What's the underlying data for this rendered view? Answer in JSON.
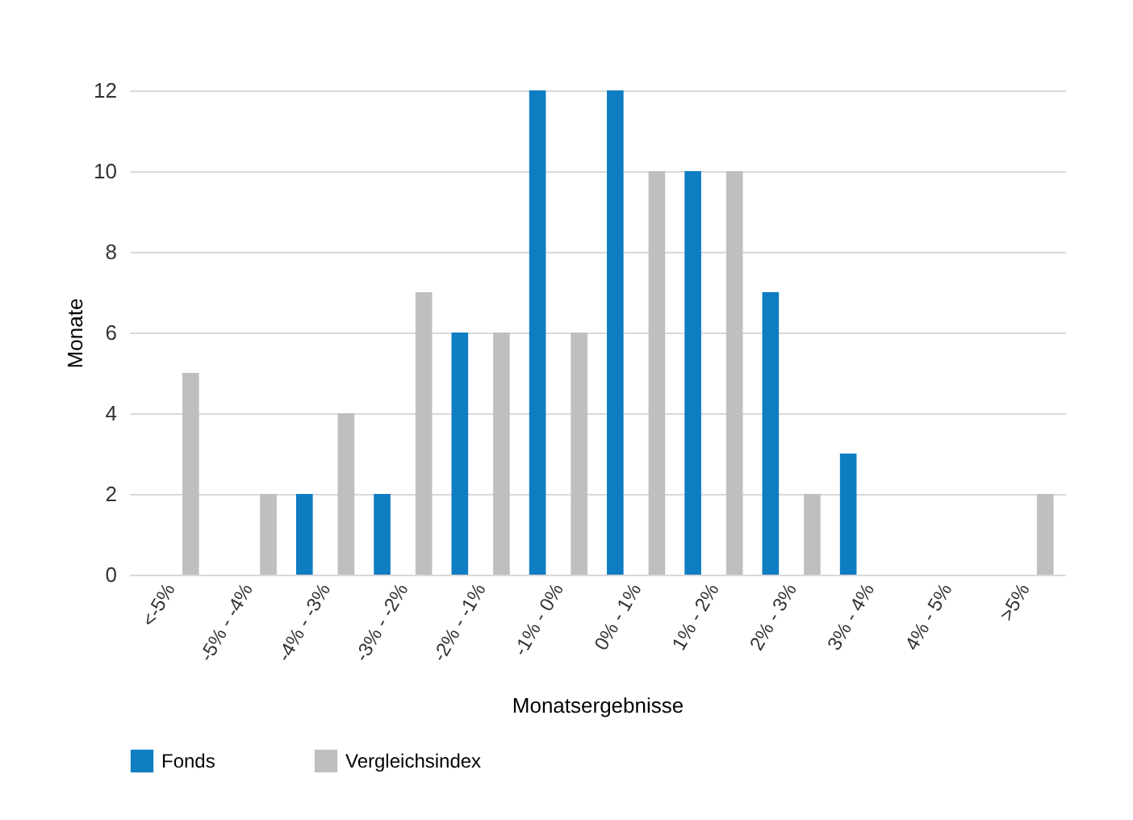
{
  "chart_data": {
    "type": "bar",
    "xlabel": "Monatsergebnisse",
    "ylabel": "Monate",
    "categories": [
      "<-5%",
      "-5% - -4%",
      "-4% - -3%",
      "-3% - -2%",
      "-2% - -1%",
      "-1% - 0%",
      "0% - 1%",
      "1% - 2%",
      "2% - 3%",
      "3% - 4%",
      "4% - 5%",
      ">5%"
    ],
    "series": [
      {
        "name": "Fonds",
        "color": "#0e7dc2",
        "values": [
          0,
          0,
          2,
          2,
          6,
          12,
          12,
          10,
          7,
          3,
          0,
          0
        ]
      },
      {
        "name": "Vergleichsindex",
        "color": "#bfbfbf",
        "values": [
          5,
          2,
          4,
          7,
          6,
          6,
          10,
          10,
          2,
          0,
          0,
          2
        ]
      }
    ],
    "ylim": [
      0,
      12
    ],
    "yticks": [
      0,
      2,
      4,
      6,
      8,
      10,
      12
    ],
    "grid": "y",
    "legend": "bottom"
  }
}
